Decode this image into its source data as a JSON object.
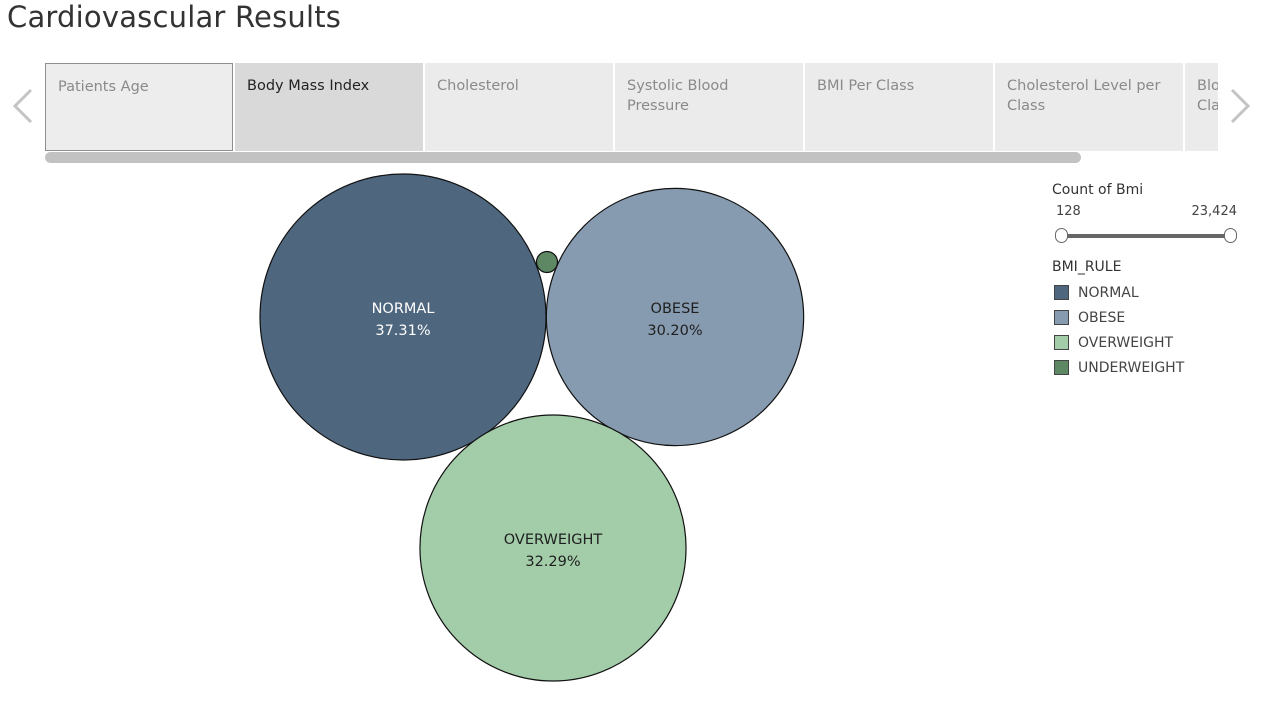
{
  "page": {
    "title": "Cardiovascular Results"
  },
  "tabs": [
    {
      "label": "Patients Age"
    },
    {
      "label": "Body Mass Index"
    },
    {
      "label": "Cholesterol"
    },
    {
      "label": "Systolic Blood Pressure"
    },
    {
      "label": "BMI Per Class"
    },
    {
      "label": "Cholesterol Level per Class"
    },
    {
      "label": "Blood Pressure per Class"
    }
  ],
  "active_tab": "Body Mass Index",
  "icons": {
    "prev": "chevron-left-icon",
    "next": "chevron-right-icon"
  },
  "legend": {
    "size_title": "Count of Bmi",
    "size_min": "128",
    "size_max": "23,424",
    "color_title": "BMI_RULE",
    "items": [
      {
        "label": "NORMAL",
        "color": "#4e667e"
      },
      {
        "label": "OBESE",
        "color": "#869bb0"
      },
      {
        "label": "OVERWEIGHT",
        "color": "#a3cda9"
      },
      {
        "label": "UNDERWEIGHT",
        "color": "#5e8763"
      }
    ]
  },
  "chart_data": {
    "type": "packed-bubble",
    "title": "",
    "size_measure": "Count of Bmi",
    "color_dimension": "BMI_RULE",
    "size_range": [
      128,
      23424
    ],
    "bubbles": [
      {
        "category": "NORMAL",
        "label": "NORMAL",
        "pct_label": "37.31%",
        "percent": 37.31,
        "color": "#4e667e",
        "text_color": "#ffffff"
      },
      {
        "category": "OBESE",
        "label": "OBESE",
        "pct_label": "30.20%",
        "percent": 30.2,
        "color": "#869bb0",
        "text_color": "#1f1f1f"
      },
      {
        "category": "OVERWEIGHT",
        "label": "OVERWEIGHT",
        "pct_label": "32.29%",
        "percent": 32.29,
        "color": "#a3cda9",
        "text_color": "#1f1f1f"
      },
      {
        "category": "UNDERWEIGHT",
        "label": "",
        "pct_label": "",
        "percent": 0.2,
        "color": "#5e8763",
        "text_color": "#1f1f1f"
      }
    ]
  }
}
